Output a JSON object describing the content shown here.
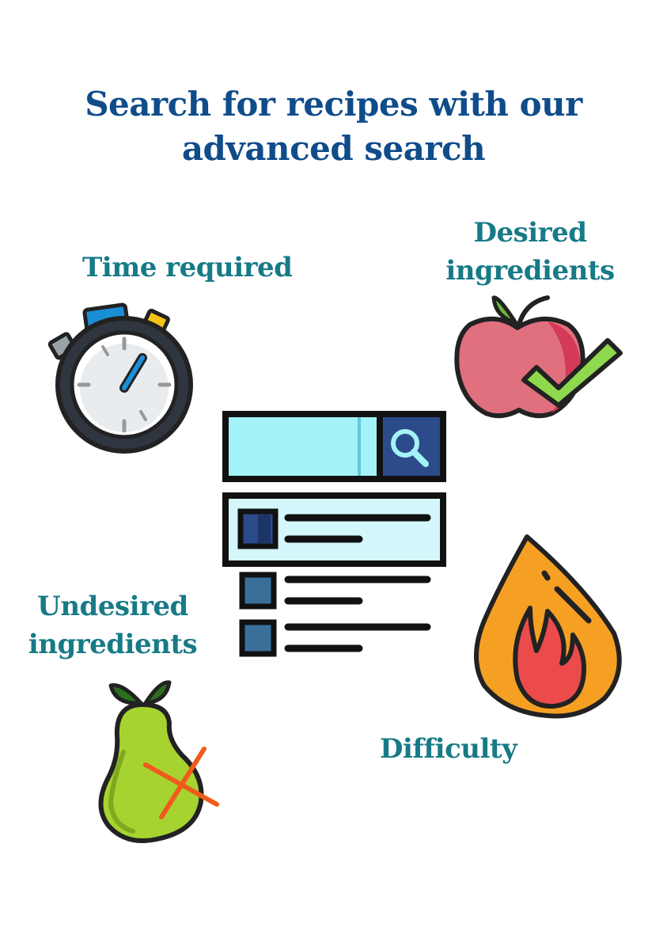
{
  "header": {
    "title_line1": "Search for recipes with our",
    "title_line2": "advanced search"
  },
  "filters": {
    "time": {
      "label": "Time required",
      "icon": "stopwatch-icon"
    },
    "desired": {
      "label_line1": "Desired",
      "label_line2": "ingredients",
      "icon": "apple-check-icon"
    },
    "undesired": {
      "label_line1": "Undesired",
      "label_line2": "ingredients",
      "icon": "pear-cross-icon"
    },
    "difficulty": {
      "label": "Difficulty",
      "icon": "flame-icon"
    }
  },
  "colors": {
    "title": "#0f4c8a",
    "label": "#177a87"
  }
}
